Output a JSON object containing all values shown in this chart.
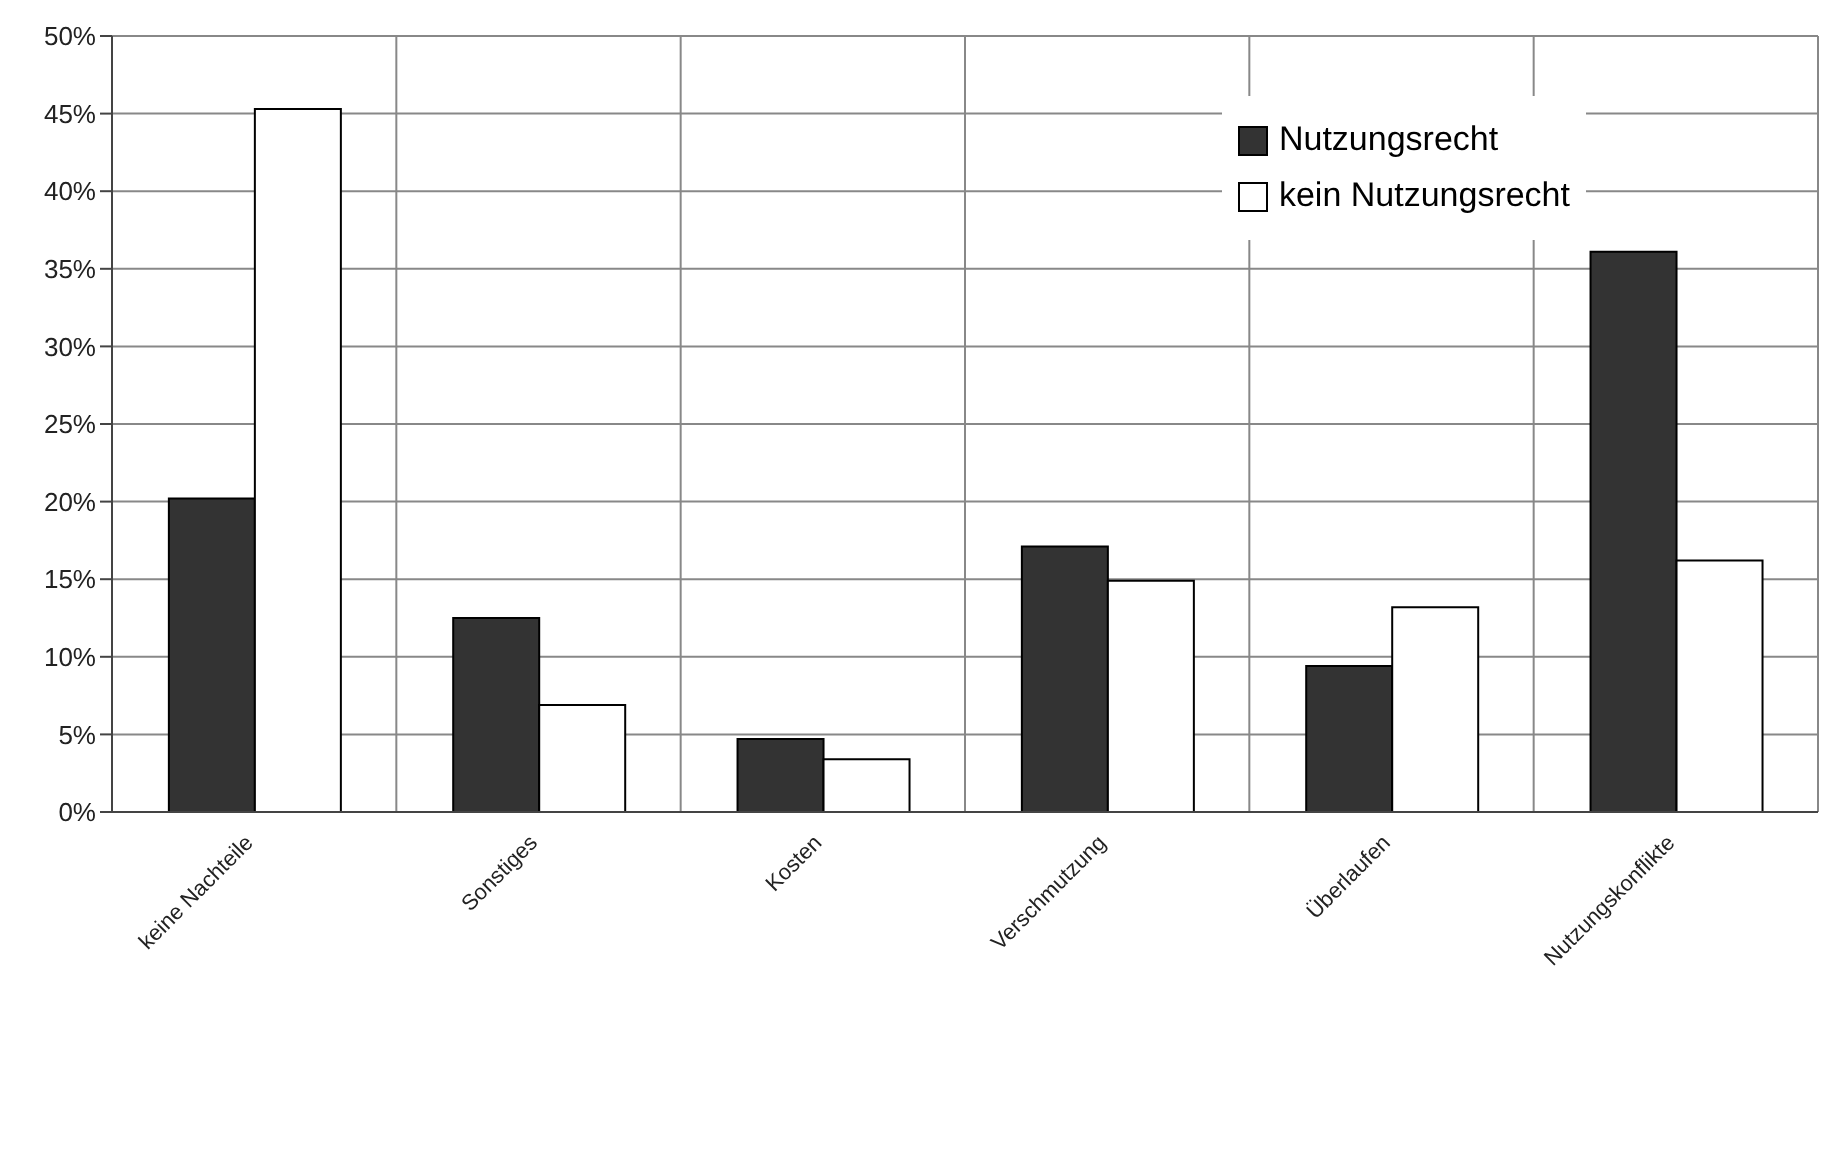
{
  "chart_data": {
    "type": "bar",
    "categories": [
      "keine Nachteile",
      "Sonstiges",
      "Kosten",
      "Verschmutzung",
      "Überlaufen",
      "Nutzungskonflikte"
    ],
    "series": [
      {
        "name": "Nutzungsrecht",
        "color": "#333333",
        "values": [
          20.2,
          12.5,
          4.7,
          17.1,
          9.4,
          36.1
        ]
      },
      {
        "name": "kein Nutzungsrecht",
        "color": "#ffffff",
        "values": [
          45.3,
          6.9,
          3.4,
          14.9,
          13.2,
          16.2
        ]
      }
    ],
    "ylim": [
      0,
      50
    ],
    "yticks": [
      {
        "value": 0,
        "label": "0%"
      },
      {
        "value": 5,
        "label": "5%"
      },
      {
        "value": 10,
        "label": "10%"
      },
      {
        "value": 15,
        "label": "15%"
      },
      {
        "value": 20,
        "label": "20%"
      },
      {
        "value": 25,
        "label": "25%"
      },
      {
        "value": 30,
        "label": "30%"
      },
      {
        "value": 35,
        "label": "35%"
      },
      {
        "value": 40,
        "label": "40%"
      },
      {
        "value": 45,
        "label": "45%"
      },
      {
        "value": 50,
        "label": "50%"
      }
    ],
    "grid": true,
    "legend": "top right"
  }
}
